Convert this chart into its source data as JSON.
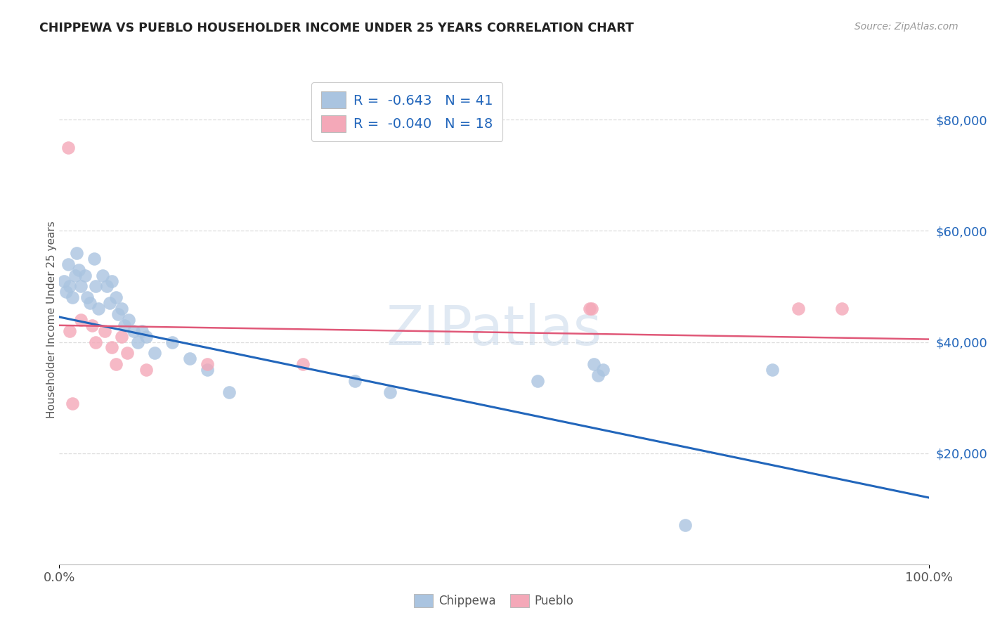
{
  "title": "CHIPPEWA VS PUEBLO HOUSEHOLDER INCOME UNDER 25 YEARS CORRELATION CHART",
  "source": "Source: ZipAtlas.com",
  "ylabel": "Householder Income Under 25 years",
  "watermark": "ZIPatlas",
  "chippewa_color": "#aac4e0",
  "pueblo_color": "#f4a8b8",
  "chippewa_line_color": "#2266bb",
  "pueblo_line_color": "#e05878",
  "background_color": "#ffffff",
  "grid_color": "#dddddd",
  "legend_r1": "R =  -0.643",
  "legend_n1": "N = 41",
  "legend_r2": "R =  -0.040",
  "legend_n2": "N = 18",
  "legend_text_color": "#2266bb",
  "y_tick_labels": [
    "$20,000",
    "$40,000",
    "$60,000",
    "$80,000"
  ],
  "y_tick_values": [
    20000,
    40000,
    60000,
    80000
  ],
  "ylim": [
    0,
    88000
  ],
  "xlim": [
    0.0,
    1.0
  ],
  "chippewa_x": [
    0.005,
    0.008,
    0.01,
    0.012,
    0.015,
    0.018,
    0.02,
    0.022,
    0.025,
    0.03,
    0.032,
    0.035,
    0.04,
    0.042,
    0.045,
    0.05,
    0.055,
    0.058,
    0.06,
    0.065,
    0.068,
    0.072,
    0.075,
    0.08,
    0.085,
    0.09,
    0.095,
    0.1,
    0.11,
    0.13,
    0.15,
    0.17,
    0.195,
    0.34,
    0.38,
    0.55,
    0.615,
    0.62,
    0.625,
    0.82,
    0.72
  ],
  "chippewa_y": [
    51000,
    49000,
    54000,
    50000,
    48000,
    52000,
    56000,
    53000,
    50000,
    52000,
    48000,
    47000,
    55000,
    50000,
    46000,
    52000,
    50000,
    47000,
    51000,
    48000,
    45000,
    46000,
    43000,
    44000,
    42000,
    40000,
    42000,
    41000,
    38000,
    40000,
    37000,
    35000,
    31000,
    33000,
    31000,
    33000,
    36000,
    34000,
    35000,
    35000,
    7000
  ],
  "pueblo_x": [
    0.01,
    0.012,
    0.025,
    0.038,
    0.042,
    0.052,
    0.06,
    0.065,
    0.072,
    0.078,
    0.1,
    0.17,
    0.28,
    0.61,
    0.612,
    0.85,
    0.9,
    0.015
  ],
  "pueblo_y": [
    75000,
    42000,
    44000,
    43000,
    40000,
    42000,
    39000,
    36000,
    41000,
    38000,
    35000,
    36000,
    36000,
    46000,
    46000,
    46000,
    46000,
    29000
  ],
  "blue_line_x": [
    0.0,
    1.0
  ],
  "blue_line_y": [
    44500,
    12000
  ],
  "pink_line_x": [
    0.0,
    1.0
  ],
  "pink_line_y": [
    43000,
    40500
  ]
}
